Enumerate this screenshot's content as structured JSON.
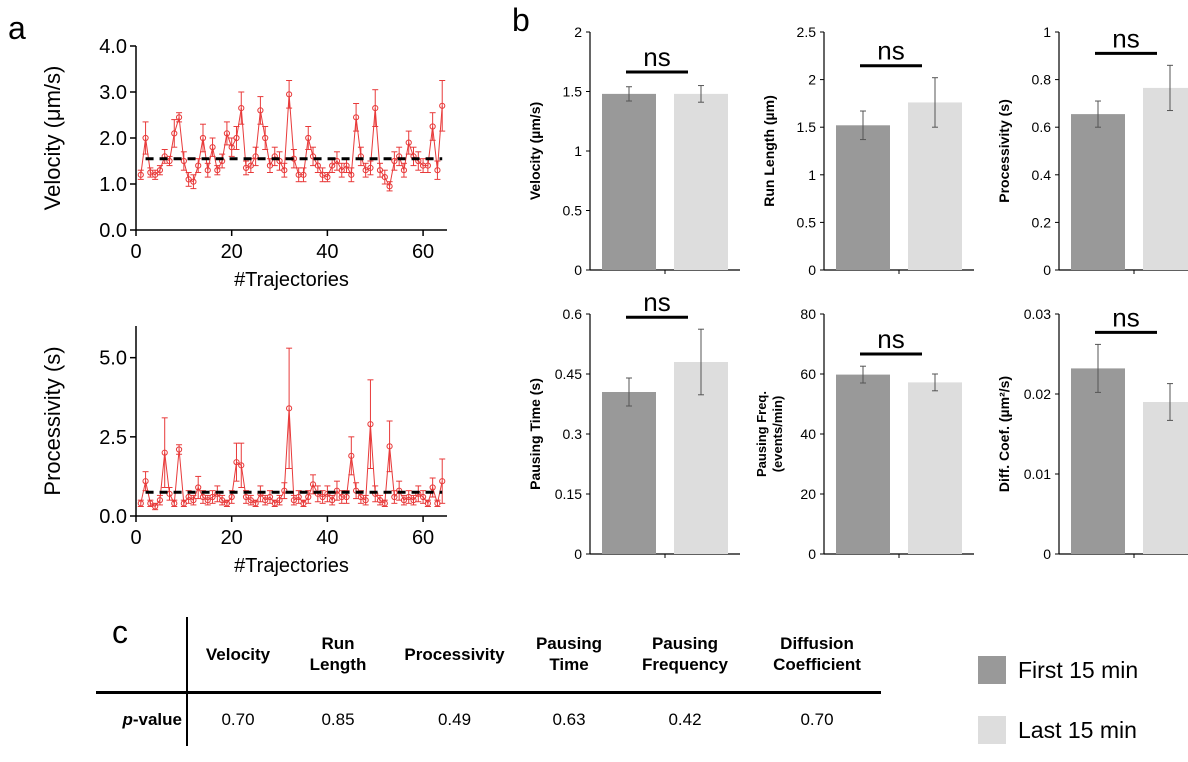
{
  "panels": {
    "a": "a",
    "b": "b",
    "c": "c"
  },
  "colors": {
    "first": "#999999",
    "last": "#dddddd",
    "trace": "#e83a3a",
    "mean": "#000000"
  },
  "chart_data": [
    {
      "id": "velocity-trace",
      "type": "line",
      "xlabel": "#Trajectories",
      "ylabel": "Velocity (μm/s)",
      "xlim": [
        0,
        65
      ],
      "ylim": [
        0,
        4
      ],
      "xticks": [
        "0",
        "20",
        "40",
        "60"
      ],
      "yticks": [
        "0.0",
        "1.0",
        "2.0",
        "3.0",
        "4.0"
      ],
      "mean": 1.55,
      "x": [
        1,
        2,
        3,
        4,
        5,
        6,
        7,
        8,
        9,
        10,
        11,
        12,
        13,
        14,
        15,
        16,
        17,
        18,
        19,
        20,
        21,
        22,
        23,
        24,
        25,
        26,
        27,
        28,
        29,
        30,
        31,
        32,
        33,
        34,
        35,
        36,
        37,
        38,
        39,
        40,
        41,
        42,
        43,
        44,
        45,
        46,
        47,
        48,
        49,
        50,
        51,
        52,
        53,
        54,
        55,
        56,
        57,
        58,
        59,
        60,
        61,
        62,
        63,
        64
      ],
      "values": [
        1.2,
        2.0,
        1.25,
        1.2,
        1.3,
        1.6,
        1.5,
        2.1,
        2.45,
        1.5,
        1.1,
        1.05,
        1.4,
        2.0,
        1.3,
        1.8,
        1.3,
        1.5,
        2.1,
        1.8,
        2.0,
        2.65,
        1.35,
        1.4,
        1.6,
        2.6,
        2.0,
        1.4,
        1.6,
        1.5,
        1.3,
        2.95,
        1.55,
        1.2,
        1.2,
        2.0,
        1.6,
        1.4,
        1.2,
        1.15,
        1.4,
        1.5,
        1.3,
        1.4,
        1.2,
        2.45,
        1.6,
        1.3,
        1.35,
        2.65,
        1.3,
        1.15,
        0.95,
        1.5,
        1.6,
        1.3,
        1.9,
        1.6,
        1.5,
        1.4,
        1.4,
        2.25,
        1.3,
        2.7
      ],
      "errors": [
        0.1,
        0.35,
        0.1,
        0.1,
        0.1,
        0.15,
        0.1,
        0.3,
        0.1,
        0.2,
        0.15,
        0.15,
        0.15,
        0.3,
        0.15,
        0.2,
        0.1,
        0.15,
        0.25,
        0.2,
        0.25,
        0.35,
        0.15,
        0.15,
        0.2,
        0.3,
        0.25,
        0.15,
        0.2,
        0.2,
        0.15,
        0.3,
        0.2,
        0.15,
        0.15,
        0.25,
        0.2,
        0.15,
        0.15,
        0.1,
        0.15,
        0.2,
        0.15,
        0.15,
        0.15,
        0.3,
        0.2,
        0.15,
        0.15,
        0.4,
        0.15,
        0.15,
        0.1,
        0.2,
        0.2,
        0.15,
        0.25,
        0.2,
        0.2,
        0.15,
        0.15,
        0.3,
        0.2,
        0.55
      ]
    },
    {
      "id": "processivity-trace",
      "type": "line",
      "xlabel": "#Trajectories",
      "ylabel": "Processivity (s)",
      "xlim": [
        0,
        65
      ],
      "ylim": [
        0,
        6
      ],
      "xticks": [
        "0",
        "20",
        "40",
        "60"
      ],
      "yticks": [
        "0.0",
        "2.5",
        "5.0"
      ],
      "mean": 0.75,
      "x": [
        1,
        2,
        3,
        4,
        5,
        6,
        7,
        8,
        9,
        10,
        11,
        12,
        13,
        14,
        15,
        16,
        17,
        18,
        19,
        20,
        21,
        22,
        23,
        24,
        25,
        26,
        27,
        28,
        29,
        30,
        31,
        32,
        33,
        34,
        35,
        36,
        37,
        38,
        39,
        40,
        41,
        42,
        43,
        44,
        45,
        46,
        47,
        48,
        49,
        50,
        51,
        52,
        53,
        54,
        55,
        56,
        57,
        58,
        59,
        60,
        61,
        62,
        63,
        64
      ],
      "values": [
        0.4,
        1.1,
        0.4,
        0.3,
        0.5,
        2.0,
        0.7,
        0.4,
        2.1,
        0.4,
        0.6,
        0.5,
        0.9,
        0.6,
        0.5,
        0.6,
        0.7,
        0.5,
        0.4,
        0.6,
        1.7,
        1.6,
        0.6,
        0.5,
        0.4,
        0.7,
        0.5,
        0.6,
        0.4,
        0.5,
        0.8,
        3.4,
        0.5,
        0.6,
        0.4,
        0.6,
        1.0,
        0.7,
        0.6,
        0.7,
        0.5,
        0.8,
        0.6,
        0.6,
        1.9,
        0.8,
        0.6,
        0.5,
        2.9,
        0.7,
        0.5,
        0.4,
        2.2,
        0.6,
        0.8,
        0.5,
        0.6,
        0.5,
        0.7,
        0.6,
        0.4,
        0.9,
        0.4,
        1.1
      ],
      "errors": [
        0.1,
        0.3,
        0.1,
        0.1,
        0.15,
        1.1,
        0.2,
        0.1,
        0.15,
        0.1,
        0.2,
        0.15,
        0.35,
        0.2,
        0.15,
        0.2,
        0.25,
        0.15,
        0.1,
        0.2,
        0.6,
        0.7,
        0.2,
        0.15,
        0.1,
        0.25,
        0.15,
        0.2,
        0.1,
        0.15,
        0.25,
        1.9,
        0.15,
        0.2,
        0.1,
        0.2,
        0.3,
        0.25,
        0.2,
        0.25,
        0.15,
        0.3,
        0.2,
        0.2,
        0.6,
        0.25,
        0.2,
        0.15,
        1.4,
        0.25,
        0.15,
        0.1,
        0.8,
        0.2,
        0.3,
        0.15,
        0.2,
        0.15,
        0.25,
        0.2,
        0.1,
        0.3,
        0.1,
        0.7
      ]
    },
    {
      "id": "bar-velocity",
      "type": "bar",
      "ylabel": "Velocity (µm/s)",
      "ylim": [
        0,
        2
      ],
      "yticks": [
        "0",
        "0.5",
        "1",
        "1.5",
        "2"
      ],
      "categories": [
        "First 15 min",
        "Last 15 min"
      ],
      "values": [
        1.48,
        1.48
      ],
      "errors": [
        0.06,
        0.07
      ],
      "sig": "ns"
    },
    {
      "id": "bar-run-length",
      "type": "bar",
      "ylabel": "Run Length (µm)",
      "ylim": [
        0,
        2.5
      ],
      "yticks": [
        "0",
        "0.5",
        "1",
        "1.5",
        "2",
        "2.5"
      ],
      "categories": [
        "First 15 min",
        "Last 15 min"
      ],
      "values": [
        1.52,
        1.76
      ],
      "errors": [
        0.15,
        0.26
      ],
      "sig": "ns"
    },
    {
      "id": "bar-processivity",
      "type": "bar",
      "ylabel": "Processivity (s)",
      "ylim": [
        0,
        1
      ],
      "yticks": [
        "0",
        "0.2",
        "0.4",
        "0.6",
        "0.8",
        "1"
      ],
      "categories": [
        "First 15 min",
        "Last 15 min"
      ],
      "values": [
        0.655,
        0.765
      ],
      "errors": [
        0.055,
        0.095
      ],
      "sig": "ns"
    },
    {
      "id": "bar-pausing-time",
      "type": "bar",
      "ylabel": "Pausing Time (s)",
      "ylim": [
        0,
        0.6
      ],
      "yticks": [
        "0",
        "0.15",
        "0.3",
        "0.45",
        "0.6"
      ],
      "categories": [
        "First 15 min",
        "Last 15 min"
      ],
      "values": [
        0.405,
        0.48
      ],
      "errors": [
        0.035,
        0.082
      ],
      "sig": "ns"
    },
    {
      "id": "bar-pausing-freq",
      "type": "bar",
      "ylabel": "Pausing Freq.",
      "ylabel2": "(events/min)",
      "ylim": [
        0,
        80
      ],
      "yticks": [
        "0",
        "20",
        "40",
        "60",
        "80"
      ],
      "categories": [
        "First 15 min",
        "Last 15 min"
      ],
      "values": [
        59.8,
        57.2
      ],
      "errors": [
        2.8,
        2.8
      ],
      "sig": "ns"
    },
    {
      "id": "bar-diff-coef",
      "type": "bar",
      "ylabel": "Diff. Coef. (µm²/s)",
      "ylim": [
        0,
        0.03
      ],
      "yticks": [
        "0",
        "0.01",
        "0.02",
        "0.03"
      ],
      "categories": [
        "First 15 min",
        "Last 15 min"
      ],
      "values": [
        0.0232,
        0.019
      ],
      "errors": [
        0.003,
        0.0023
      ],
      "sig": "ns"
    }
  ],
  "table": {
    "headers": [
      [
        "Velocity"
      ],
      [
        "Run",
        "Length"
      ],
      [
        "Processivity"
      ],
      [
        "Pausing",
        "Time"
      ],
      [
        "Pausing",
        "Frequency"
      ],
      [
        "Diffusion",
        "Coefficient"
      ]
    ],
    "row_label_italic": "p",
    "row_label_rest": "-value",
    "values": [
      "0.70",
      "0.85",
      "0.49",
      "0.63",
      "0.42",
      "0.70"
    ]
  },
  "legend": [
    {
      "label": "First 15 min",
      "color": "#999999"
    },
    {
      "label": "Last 15 min",
      "color": "#dddddd"
    }
  ]
}
